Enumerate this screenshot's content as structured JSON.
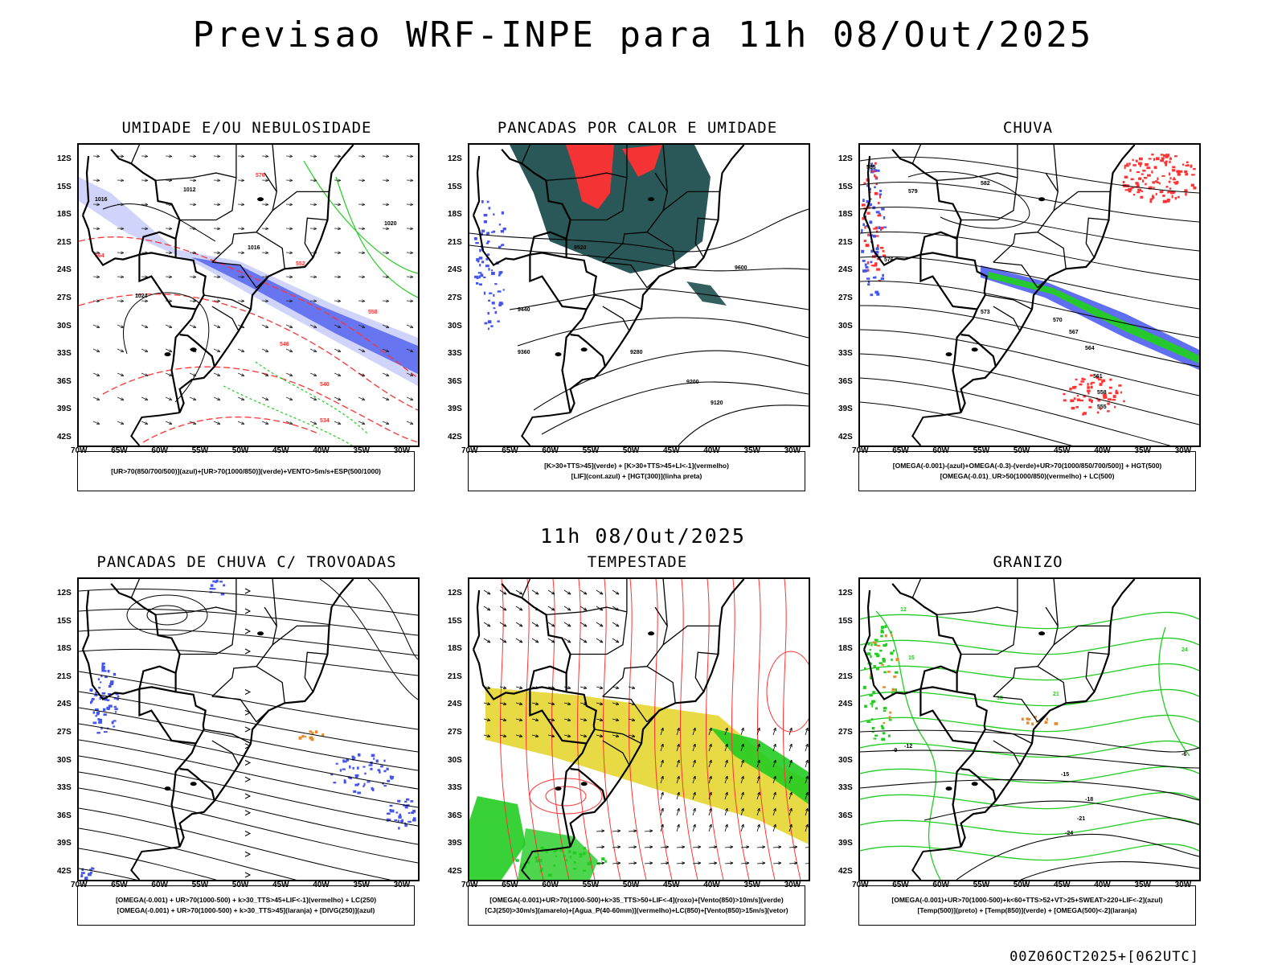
{
  "title": "Previsao WRF-INPE  para 11h 08/Out/2025",
  "mid_title": "11h 08/Out/2025",
  "footer": "00Z06OCT2025+[062UTC]",
  "axes": {
    "lat_labels": [
      "12S",
      "15S",
      "18S",
      "21S",
      "24S",
      "27S",
      "30S",
      "33S",
      "36S",
      "39S",
      "42S"
    ],
    "lon_labels": [
      "70W",
      "65W",
      "60W",
      "55W",
      "50W",
      "45W",
      "40W",
      "35W",
      "30W"
    ]
  },
  "colors": {
    "blue": "#4455ee",
    "green": "#22cc22",
    "red": "#ff3333",
    "dark_green": "#1f4f4f",
    "yellow": "#e6d83a",
    "orange": "#e88a2a"
  },
  "panels": [
    {
      "title": "UMIDADE E/OU NEBULOSIDADE",
      "legend": [
        "[UR>70(850/700/500)](azul)+[UR>70(1000/850)](verde)+VENTO>5m/s+ESP(500/1000)"
      ],
      "contour_labels": [
        "1016",
        "1012",
        "1020",
        "1024",
        "1016",
        "576",
        "564",
        "558",
        "552",
        "546",
        "540",
        "534"
      ]
    },
    {
      "title": "PANCADAS POR CALOR E UMIDADE",
      "legend": [
        "[K>30+TTS>45](verde) + [K>30+TTS>45+LI<-1](vermelho)",
        "[LIF](cont.azul) + [HGT(300)](linha preta)"
      ],
      "contour_labels": [
        "9600",
        "9520",
        "9440",
        "9360",
        "9280",
        "9200",
        "9120"
      ]
    },
    {
      "title": "CHUVA",
      "legend": [
        "[OMEGA(-0.001)-(azul)+OMEGA(-0.3)-(verde)+UR>70(1000/850/700/500)] + HGT(500)",
        "[OMEGA(-0.01)_UR>50(1000/850)(vermelho) + LC(500)"
      ],
      "contour_labels": [
        "585",
        "582",
        "579",
        "576",
        "573",
        "570",
        "567",
        "564",
        "561",
        "558",
        "555"
      ]
    },
    {
      "title": "PANCADAS DE CHUVA C/ TROVOADAS",
      "legend": [
        "[OMEGA(-0.001) + UR>70(1000-500) + k>30_TTS>45+LIF<-1](vermelho) + LC(250)",
        "[OMEGA(-0.001) + UR>70(1000-500) + k>30_TTS>45](laranja) + [DIVG(250)](azul)"
      ],
      "contour_labels": []
    },
    {
      "title": "TEMPESTADE",
      "legend": [
        "[OMEGA(-0.001)+UR>70(1000-500)+k>35_TTS>50+LIF<-4](roxo)+[Vento(850)>10m/s](verde)",
        "[CJ(250)>30m/s](amarelo)+[Agua_P(40-60mm)](vermelho)+LC(850)+[Vento(850)>15m/s](vetor)"
      ],
      "contour_labels": []
    },
    {
      "title": "GRANIZO",
      "legend": [
        "[OMEGA(-0.001)+UR>70(1000-500)+k<60+TTS>52+VT>25+SWEAT>220+LIF<-2](azul)",
        "[Temp(500)](preto) + [Temp(850)](verde) + [OMEGA(500)<-2](laranja)"
      ],
      "contour_labels": [
        "-6",
        "-9",
        "-12",
        "-15",
        "-18",
        "-21",
        "-24",
        "12",
        "15",
        "18",
        "21",
        "24"
      ]
    }
  ]
}
